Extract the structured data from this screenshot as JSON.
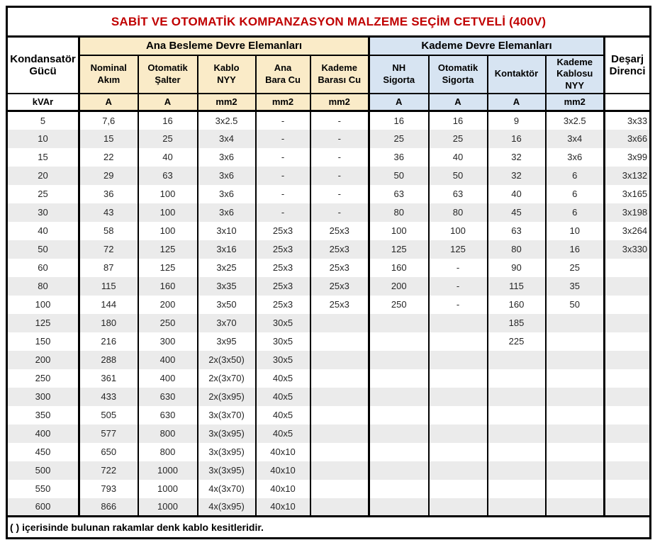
{
  "title": "SABİT VE OTOMATİK KOMPANZASYON MALZEME SEÇİM CETVELİ (400V)",
  "colors": {
    "title_red": "#C00000",
    "cream_group_bg": "#FAEBC8",
    "blue_group_bg": "#D7E4F2",
    "stripe_gray": "#EBEBEB",
    "white_bg": "#FFFFFF"
  },
  "table": {
    "corner_header": {
      "label": "Kondansatör\nGücü",
      "unit": "kVAr"
    },
    "groups": [
      {
        "label": "Ana Besleme Devre Elemanları",
        "columns": [
          {
            "label": "Nominal\nAkım",
            "unit": "A"
          },
          {
            "label": "Otomatik\nŞalter",
            "unit": "A"
          },
          {
            "label": "Kablo\nNYY",
            "unit": "mm2"
          },
          {
            "label": "Ana\nBara Cu",
            "unit": "mm2"
          },
          {
            "label": "Kademe\nBarası Cu",
            "unit": "mm2"
          }
        ]
      },
      {
        "label": "Kademe Devre Elemanları",
        "columns": [
          {
            "label": "NH\nSigorta",
            "unit": "A"
          },
          {
            "label": "Otomatik\nSigorta",
            "unit": "A"
          },
          {
            "label": "Kontaktör",
            "unit": "A"
          },
          {
            "label": "Kademe\nKablosu\nNYY",
            "unit": "mm2"
          }
        ]
      }
    ],
    "last_header": {
      "label": "Deşarj\nDirenci",
      "unit": ""
    },
    "rows": [
      [
        "5",
        "7,6",
        "16",
        "3x2.5",
        "-",
        "-",
        "16",
        "16",
        "9",
        "3x2.5",
        "3x33"
      ],
      [
        "10",
        "15",
        "25",
        "3x4",
        "-",
        "-",
        "25",
        "25",
        "16",
        "3x4",
        "3x66"
      ],
      [
        "15",
        "22",
        "40",
        "3x6",
        "-",
        "-",
        "36",
        "40",
        "32",
        "3x6",
        "3x99"
      ],
      [
        "20",
        "29",
        "63",
        "3x6",
        "-",
        "-",
        "50",
        "50",
        "32",
        "6",
        "3x132"
      ],
      [
        "25",
        "36",
        "100",
        "3x6",
        "-",
        "-",
        "63",
        "63",
        "40",
        "6",
        "3x165"
      ],
      [
        "30",
        "43",
        "100",
        "3x6",
        "-",
        "-",
        "80",
        "80",
        "45",
        "6",
        "3x198"
      ],
      [
        "40",
        "58",
        "100",
        "3x10",
        "25x3",
        "25x3",
        "100",
        "100",
        "63",
        "10",
        "3x264"
      ],
      [
        "50",
        "72",
        "125",
        "3x16",
        "25x3",
        "25x3",
        "125",
        "125",
        "80",
        "16",
        "3x330"
      ],
      [
        "60",
        "87",
        "125",
        "3x25",
        "25x3",
        "25x3",
        "160",
        "-",
        "90",
        "25",
        ""
      ],
      [
        "80",
        "115",
        "160",
        "3x35",
        "25x3",
        "25x3",
        "200",
        "-",
        "115",
        "35",
        ""
      ],
      [
        "100",
        "144",
        "200",
        "3x50",
        "25x3",
        "25x3",
        "250",
        "-",
        "160",
        "50",
        ""
      ],
      [
        "125",
        "180",
        "250",
        "3x70",
        "30x5",
        "",
        "",
        "",
        "185",
        "",
        ""
      ],
      [
        "150",
        "216",
        "300",
        "3x95",
        "30x5",
        "",
        "",
        "",
        "225",
        "",
        ""
      ],
      [
        "200",
        "288",
        "400",
        "2x(3x50)",
        "30x5",
        "",
        "",
        "",
        "",
        "",
        ""
      ],
      [
        "250",
        "361",
        "400",
        "2x(3x70)",
        "40x5",
        "",
        "",
        "",
        "",
        "",
        ""
      ],
      [
        "300",
        "433",
        "630",
        "2x(3x95)",
        "40x5",
        "",
        "",
        "",
        "",
        "",
        ""
      ],
      [
        "350",
        "505",
        "630",
        "3x(3x70)",
        "40x5",
        "",
        "",
        "",
        "",
        "",
        ""
      ],
      [
        "400",
        "577",
        "800",
        "3x(3x95)",
        "40x5",
        "",
        "",
        "",
        "",
        "",
        ""
      ],
      [
        "450",
        "650",
        "800",
        "3x(3x95)",
        "40x10",
        "",
        "",
        "",
        "",
        "",
        ""
      ],
      [
        "500",
        "722",
        "1000",
        "3x(3x95)",
        "40x10",
        "",
        "",
        "",
        "",
        "",
        ""
      ],
      [
        "550",
        "793",
        "1000",
        "4x(3x70)",
        "40x10",
        "",
        "",
        "",
        "",
        "",
        ""
      ],
      [
        "600",
        "866",
        "1000",
        "4x(3x95)",
        "40x10",
        "",
        "",
        "",
        "",
        "",
        ""
      ]
    ]
  },
  "footer_note": "( ) içerisinde bulunan rakamlar denk kablo kesitleridir."
}
